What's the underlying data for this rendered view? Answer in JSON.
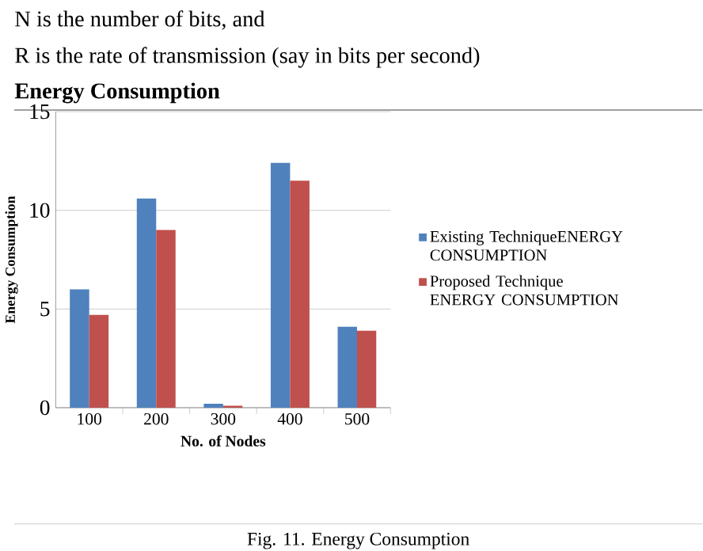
{
  "chart_data": {
    "type": "bar",
    "title": "Energy Consumption",
    "xlabel": "No. of Nodes",
    "ylabel": "Energy Consumption",
    "annotations": [
      "N is the number of bits, and",
      "R is the rate of transmission (say in bits per second)",
      "Fig. 11. Energy Consumption"
    ],
    "categories": [
      "100",
      "200",
      "300",
      "400",
      "500"
    ],
    "series": [
      {
        "name": "Existing TechniqueENERGY CONSUMPTION",
        "color": "#4f81bd",
        "values": [
          6.0,
          10.6,
          0.2,
          12.4,
          4.1
        ]
      },
      {
        "name": "Proposed Technique ENERGY CONSUMPTION",
        "color": "#c0504d",
        "values": [
          4.7,
          9.0,
          0.1,
          11.5,
          3.9
        ]
      }
    ],
    "ylim": [
      0,
      15
    ],
    "yticks": [
      0,
      5,
      10,
      15
    ],
    "grid": "y",
    "legend": "right"
  }
}
